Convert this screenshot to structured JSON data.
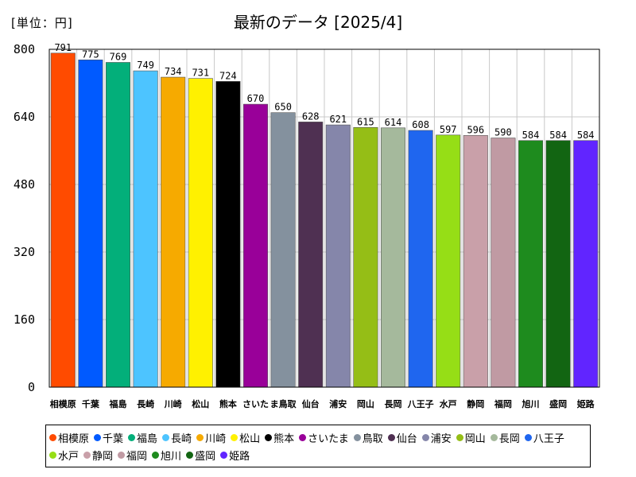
{
  "unit_label": "[単位：円]",
  "chart_data": {
    "type": "bar",
    "title": "最新のデータ [2025/4]",
    "ylim": [
      0,
      800
    ],
    "yticks": [
      0,
      160,
      320,
      480,
      640,
      800
    ],
    "grid": true,
    "legend_position": "bottom",
    "categories": [
      "相模原",
      "千葉",
      "福島",
      "長崎",
      "川崎",
      "松山",
      "熊本",
      "さいたま",
      "鳥取",
      "仙台",
      "浦安",
      "岡山",
      "長岡",
      "八王子",
      "水戸",
      "静岡",
      "福岡",
      "旭川",
      "盛岡",
      "姫路"
    ],
    "category_axis_labels": [
      "相模原",
      "千葉",
      "福島",
      "長崎",
      "川崎",
      "松山",
      "熊本",
      "さいた",
      "ま鳥取",
      "仙台",
      "浦安",
      "岡山",
      "長岡",
      "八王子",
      "水戸",
      "静岡",
      "福岡",
      "旭川",
      "盛岡",
      "姫路"
    ],
    "values": [
      791,
      775,
      769,
      749,
      734,
      731,
      724,
      670,
      650,
      628,
      621,
      615,
      614,
      608,
      597,
      596,
      590,
      584,
      584,
      584
    ],
    "colors": [
      "#ff4b00",
      "#005aff",
      "#03af7a",
      "#4dc4ff",
      "#f6aa00",
      "#fff100",
      "#000000",
      "#990099",
      "#84919e",
      "#4f3052",
      "#8586aa",
      "#95be16",
      "#a5b99c",
      "#1f66ef",
      "#96de16",
      "#c9a0a9",
      "#c09aa3",
      "#1e8b1e",
      "#126512",
      "#6125ff"
    ]
  }
}
